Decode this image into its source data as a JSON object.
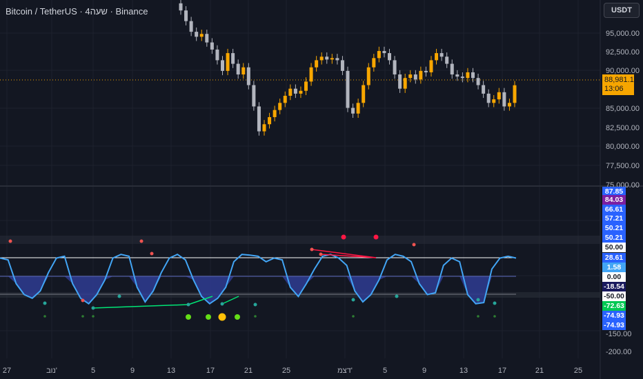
{
  "header": {
    "symbol_title": "Bitcoin / TetherUS · 4שעה · Binance",
    "currency": "USDT"
  },
  "price_axis": {
    "labels": [
      "95,000.00",
      "92,500.00",
      "90,000.00",
      "85,000.00",
      "82,500.00",
      "80,000.00",
      "77,500.00",
      "75,000.00"
    ],
    "current_price": "88,981.13",
    "countdown": "13:06"
  },
  "oscillator_axis": {
    "labels": [
      "-150.00",
      "-200.00"
    ],
    "tags": [
      {
        "text": "87.85",
        "color": "#2962ff"
      },
      {
        "text": "84.03",
        "color": "#7b1fa2"
      },
      {
        "text": "66.61",
        "color": "#2962ff"
      },
      {
        "text": "57.21",
        "color": "#2962ff"
      },
      {
        "text": "50.21",
        "color": "#2962ff"
      },
      {
        "text": "50.21",
        "color": "#2962ff"
      },
      {
        "text": "50.00",
        "color": "#ffffff"
      },
      {
        "text": "28.61",
        "color": "#2962ff"
      },
      {
        "text": "1.58",
        "color": "#42a5f5"
      },
      {
        "text": "0.00",
        "color": "#ffffff"
      },
      {
        "text": "-18.54",
        "color": "#1a1a5e"
      },
      {
        "text": "-50.00",
        "color": "#ffffff"
      },
      {
        "text": "-72.63",
        "color": "#00c853"
      },
      {
        "text": "-74.93",
        "color": "#2962ff"
      },
      {
        "text": "-74.93",
        "color": "#2962ff"
      }
    ]
  },
  "time_axis": {
    "labels": [
      "27",
      "נוב'",
      "5",
      "9",
      "13",
      "17",
      "21",
      "25",
      "דצמ'",
      "5",
      "9",
      "13",
      "17",
      "21",
      "25"
    ]
  },
  "colors": {
    "background": "#131722",
    "up_candle": "#f7a600",
    "down_candle": "#b2b5be",
    "oscillator_line": "#42a5f5",
    "oscillator_fill": "#2e3a8c",
    "bull_divergence": "#00e676",
    "bear_divergence": "#ff1744"
  },
  "chart_data": {
    "type": "candlestick",
    "price_series": [
      {
        "name": "close",
        "values": [
          99500,
          98000,
          96500,
          95800,
          96200,
          95000,
          94000,
          92500,
          91000,
          93500,
          92000,
          90500,
          91500,
          89000,
          86000,
          82500,
          83500,
          84500,
          85500,
          86500,
          87500,
          88500,
          87800,
          88200,
          89500,
          91500,
          92500,
          93000,
          92600,
          92800,
          92500,
          91000,
          85800,
          85000,
          86500,
          89000,
          91500,
          92800,
          93800,
          93500,
          92500,
          90500,
          88500,
          90000,
          90500,
          89800,
          91000,
          90800,
          92500,
          93500,
          93000,
          92000,
          90500,
          90200,
          90000,
          90800,
          90000,
          89000,
          87800,
          86500,
          87000,
          88000,
          86000,
          86500,
          88981
        ]
      },
      {
        "name": "oscillator",
        "values": [
          50,
          45,
          -20,
          -50,
          -60,
          -40,
          10,
          50,
          55,
          -20,
          -60,
          -75,
          -50,
          -10,
          50,
          60,
          55,
          -30,
          -70,
          -40,
          10,
          50,
          60,
          45,
          -10,
          -55,
          -75,
          -60,
          -30,
          40,
          60,
          58,
          55,
          40,
          50,
          45,
          -30,
          -55,
          -20,
          20,
          55,
          60,
          50,
          30,
          -40,
          -70,
          -50,
          -10,
          45,
          60,
          55,
          40,
          -20,
          -50,
          -45,
          30,
          50,
          40,
          -50,
          -75,
          -72,
          20,
          50,
          55,
          50
        ]
      }
    ],
    "ylim_price": [
      75000,
      100000
    ],
    "ylim_oscillator": [
      -100,
      100
    ],
    "levels": [
      50,
      0,
      -50
    ]
  }
}
